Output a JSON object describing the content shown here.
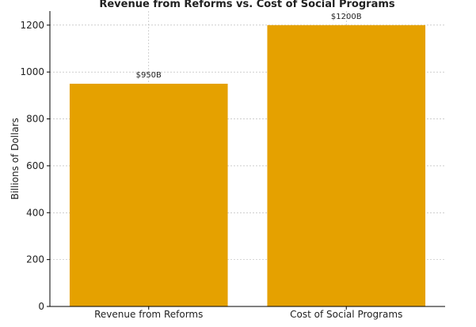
{
  "chart_data": {
    "type": "bar",
    "title": "Revenue from Reforms vs. Cost of Social Programs",
    "xlabel": "",
    "ylabel": "Billions of Dollars",
    "categories": [
      "Revenue from Reforms",
      "Cost of Social Programs"
    ],
    "values": [
      950,
      1200
    ],
    "data_labels": [
      "$950B",
      "$1200B"
    ],
    "ylim": [
      0,
      1260
    ],
    "yticks": [
      0,
      200,
      400,
      600,
      800,
      1000,
      1200
    ],
    "ytick_labels": [
      "0",
      "200",
      "400",
      "600",
      "800",
      "1000",
      "1200"
    ],
    "grid": true,
    "bar_color": "#e5a100"
  }
}
